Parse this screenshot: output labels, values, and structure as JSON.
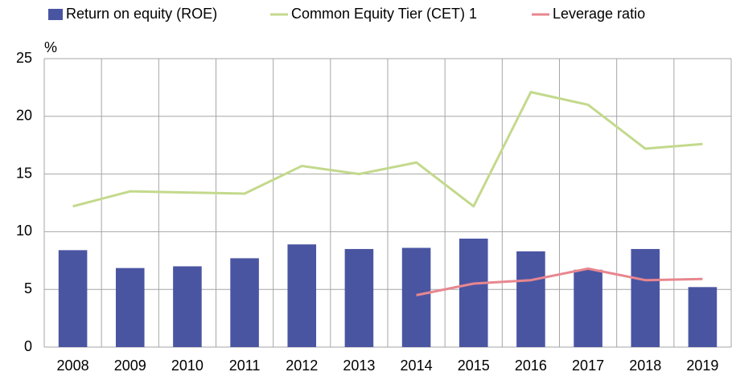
{
  "chart_data": {
    "type": "bar",
    "y_label": "%",
    "categories": [
      "2008",
      "2009",
      "2010",
      "2011",
      "2012",
      "2013",
      "2014",
      "2015",
      "2016",
      "2017",
      "2018",
      "2019"
    ],
    "series": [
      {
        "name": "Return on equity (ROE)",
        "type": "bar",
        "color": "#4a55a2",
        "values": [
          8.4,
          6.85,
          7.0,
          7.7,
          8.9,
          8.5,
          8.6,
          9.4,
          8.3,
          6.7,
          8.5,
          5.2
        ]
      },
      {
        "name": "Common Equity Tier (CET) 1",
        "type": "line",
        "color": "#c3d98c",
        "values": [
          12.2,
          13.5,
          13.4,
          13.3,
          15.7,
          15.0,
          16.0,
          12.2,
          22.1,
          21.0,
          17.2,
          17.6
        ]
      },
      {
        "name": "Leverage ratio",
        "type": "line",
        "color": "#e8868f",
        "values": [
          null,
          null,
          null,
          null,
          null,
          null,
          4.5,
          5.5,
          5.8,
          6.8,
          5.8,
          5.9
        ]
      }
    ],
    "ylim": [
      0,
      25
    ],
    "yticks": [
      0,
      5,
      10,
      15,
      20,
      25
    ],
    "grid": true
  }
}
